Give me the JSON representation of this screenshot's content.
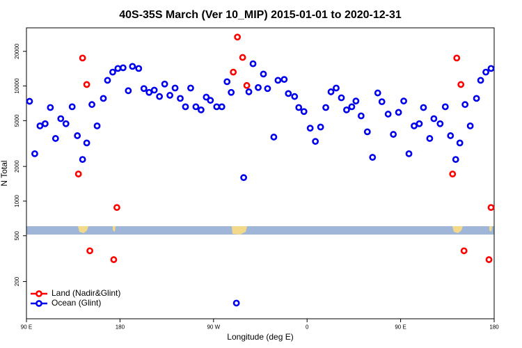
{
  "chart_data": {
    "type": "scatter",
    "title": "40S-35S March (Ver 10_MIP)   2015-01-01 to 2020-12-31",
    "x_label": "Longitude (deg E)",
    "y_label": "N Total",
    "y_scale": "log",
    "legend": "lower-left",
    "xlim": [
      90,
      540
    ],
    "ylim": [
      95,
      32000
    ],
    "xticks": [
      {
        "value": 90,
        "label": "90 E"
      },
      {
        "value": 180,
        "label": "180"
      },
      {
        "value": 270,
        "label": "90 W"
      },
      {
        "value": 360,
        "label": "0"
      },
      {
        "value": 450,
        "label": "90 E"
      },
      {
        "value": 540,
        "label": "180"
      }
    ],
    "yticks": [
      200,
      500,
      1000,
      2000,
      5000,
      10000,
      20000
    ],
    "series": [
      {
        "name": "Land (Nadir&Glint)",
        "color": "#ff0000",
        "x": [
          140,
          144,
          148,
          151,
          174,
          177,
          289,
          293,
          298,
          302,
          500,
          504,
          508,
          511,
          535,
          537
        ],
        "values": [
          1720,
          17500,
          10300,
          370,
          310,
          880,
          13200,
          26600,
          17700,
          10100,
          1720,
          17500,
          10300,
          370,
          310,
          880
        ]
      },
      {
        "name": "Ocean (Glint)",
        "color": "#0000ee",
        "x": [
          93,
          98,
          103,
          108,
          113,
          118,
          123,
          128,
          134,
          139,
          144,
          148,
          153,
          158,
          164,
          168,
          173,
          178,
          183,
          188,
          192,
          198,
          203,
          208,
          213,
          218,
          223,
          228,
          233,
          238,
          243,
          248,
          253,
          258,
          263,
          267,
          273,
          278,
          283,
          287,
          292,
          299,
          304,
          308,
          313,
          318,
          322,
          328,
          332,
          338,
          342,
          348,
          352,
          357,
          363,
          368,
          373,
          378,
          383,
          388,
          393,
          398,
          403,
          407,
          412,
          418,
          423,
          428,
          432,
          438,
          443,
          448,
          453,
          458,
          463,
          468,
          472,
          478,
          482,
          488,
          493,
          498,
          503,
          507,
          512,
          517,
          523,
          527,
          532,
          537
        ],
        "values": [
          7360,
          2580,
          4500,
          4700,
          6500,
          3500,
          5200,
          4700,
          6600,
          3700,
          2300,
          3200,
          6900,
          4500,
          7800,
          11200,
          13200,
          14200,
          14400,
          9100,
          14800,
          14200,
          9500,
          8800,
          9200,
          8100,
          10400,
          8300,
          9600,
          7800,
          6600,
          9600,
          6600,
          6200,
          8000,
          7500,
          6600,
          6600,
          10900,
          8800,
          130,
          1600,
          8900,
          15600,
          9700,
          12700,
          9500,
          3600,
          11200,
          11400,
          8600,
          8100,
          6500,
          6000,
          4300,
          3300,
          4400,
          6500,
          8900,
          9600,
          7900,
          6200,
          6600,
          7400,
          5500,
          4000,
          2400,
          8700,
          7300,
          5700,
          3800,
          5900,
          7400,
          2580,
          4500,
          4700,
          6500,
          3500,
          5200,
          4700,
          6600,
          3700,
          2300,
          3200,
          6900,
          4500,
          7800,
          11200,
          13200,
          14200
        ]
      }
    ]
  }
}
